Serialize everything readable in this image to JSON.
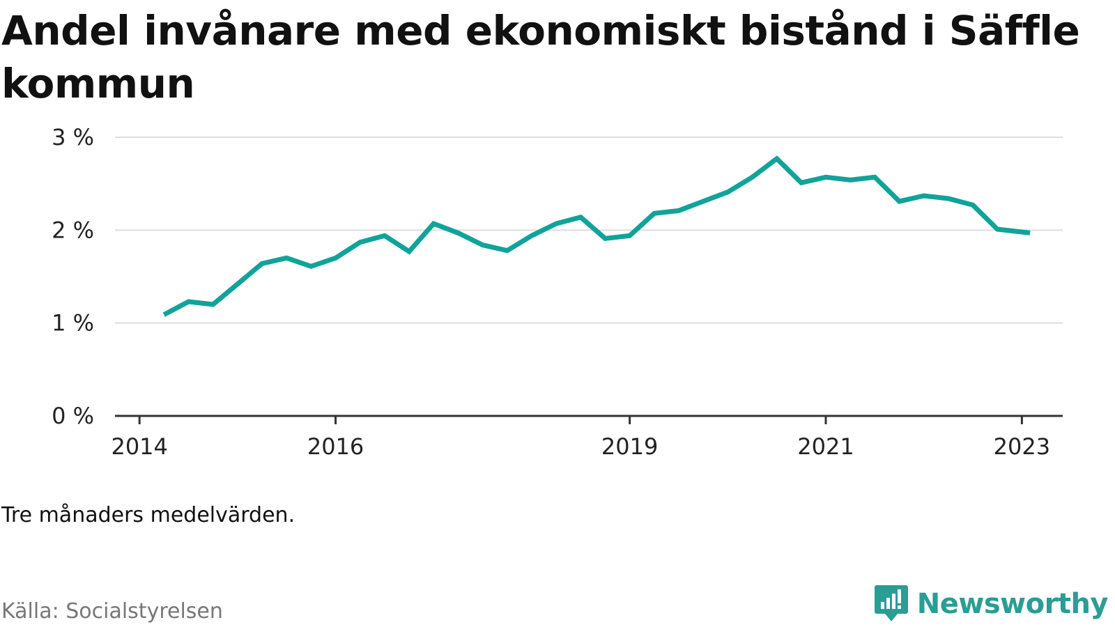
{
  "header": {
    "title": "Andel invånare med ekonomiskt bistånd i Säffle kommun"
  },
  "footer": {
    "note": "Tre månaders medelvärden.",
    "source": "Källa: Socialstyrelsen",
    "brand": "Newsworthy",
    "brand_icon": "newsworthy-logo-icon"
  },
  "colors": {
    "line": "#10a39a",
    "grid": "#dddddd",
    "axis": "#333333",
    "brand": "#2a9d95"
  },
  "chart_data": {
    "type": "line",
    "title": "Andel invånare med ekonomiskt bistånd i Säffle kommun",
    "xlabel": "",
    "ylabel": "",
    "grid": true,
    "y_ticks": [
      {
        "value": 0,
        "label": "0 %"
      },
      {
        "value": 1,
        "label": "1 %"
      },
      {
        "value": 2,
        "label": "2 %"
      },
      {
        "value": 3,
        "label": "3 %"
      }
    ],
    "x_ticks": [
      {
        "value": "2014-01",
        "label": "2014"
      },
      {
        "value": "2016-01",
        "label": "2016"
      },
      {
        "value": "2019-01",
        "label": "2019"
      },
      {
        "value": "2021-01",
        "label": "2021"
      },
      {
        "value": "2023-01",
        "label": "2023"
      }
    ],
    "xlim": [
      "2013-10",
      "2023-06"
    ],
    "ylim": [
      0,
      3
    ],
    "series": [
      {
        "x": [
          "2014-04",
          "2014-07",
          "2014-10",
          "2015-01",
          "2015-04",
          "2015-07",
          "2015-10",
          "2016-01",
          "2016-04",
          "2016-07",
          "2016-10",
          "2017-01",
          "2017-04",
          "2017-07",
          "2017-10",
          "2018-01",
          "2018-04",
          "2018-07",
          "2018-10",
          "2019-01",
          "2019-04",
          "2019-07",
          "2019-10",
          "2020-01",
          "2020-04",
          "2020-07",
          "2020-10",
          "2021-01",
          "2021-04",
          "2021-07",
          "2021-10",
          "2022-01",
          "2022-04",
          "2022-07",
          "2022-10",
          "2023-01",
          "2023-02"
        ],
        "values": [
          1.09,
          1.23,
          1.2,
          1.42,
          1.64,
          1.7,
          1.61,
          1.7,
          1.87,
          1.94,
          1.77,
          2.07,
          1.97,
          1.84,
          1.78,
          1.94,
          2.07,
          2.14,
          1.91,
          1.94,
          2.18,
          2.21,
          2.31,
          2.41,
          2.57,
          2.77,
          2.51,
          2.57,
          2.54,
          2.57,
          2.31,
          2.37,
          2.34,
          2.27,
          2.01,
          1.98,
          1.97
        ]
      }
    ]
  }
}
